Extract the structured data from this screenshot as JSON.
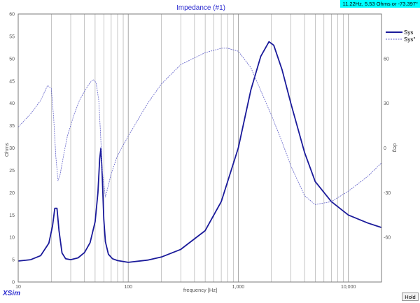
{
  "window": {
    "readout": "11.22Hz, 5.53 Ohms or -73.397°",
    "hold_label": "Hold",
    "brand": "XSim"
  },
  "colors": {
    "plot_background": "#ffffff",
    "grid": "#a0a0a0",
    "axis_text": "#555555",
    "title": "#2b2bcf",
    "series_primary": "#1a1a9a",
    "series_secondary": "#6060c8",
    "readout_bg": "#00ffff"
  },
  "chart_data": {
    "type": "line",
    "title": "Impedance (#1)",
    "xlabel": "frequency [Hz]",
    "ylabel": "Ohms",
    "y2label": "deg",
    "xscale": "log",
    "xlim": [
      10,
      20000
    ],
    "ylim": [
      0,
      60
    ],
    "y2lim": [
      -90,
      90
    ],
    "grid": true,
    "legend_position": "top-right",
    "x_ticks": [
      {
        "value": 10,
        "label": "10"
      },
      {
        "value": 100,
        "label": "100"
      },
      {
        "value": 1000,
        "label": "1,000"
      },
      {
        "value": 10000,
        "label": "10,000"
      }
    ],
    "y_ticks": [
      0,
      5,
      10,
      15,
      20,
      25,
      30,
      35,
      40,
      45,
      50,
      55,
      60
    ],
    "y2_ticks": [
      -60,
      -30,
      0,
      30,
      60
    ],
    "series": [
      {
        "name": "Sys",
        "axis": "left",
        "style": "solid",
        "x": [
          10,
          13,
          16,
          19,
          20.5,
          21.5,
          22.5,
          23.5,
          25,
          27,
          30,
          35,
          40,
          45,
          50,
          53,
          55,
          56.5,
          58,
          60,
          62,
          66,
          72,
          80,
          100,
          150,
          200,
          300,
          500,
          700,
          1000,
          1300,
          1600,
          1900,
          2100,
          2500,
          3000,
          4000,
          5000,
          7000,
          10000,
          15000,
          20000
        ],
        "values": [
          4.7,
          5.0,
          5.9,
          8.7,
          12.5,
          16.5,
          16.5,
          11.5,
          6.5,
          5.2,
          5.0,
          5.4,
          6.6,
          8.8,
          13.5,
          20.0,
          27.5,
          30.0,
          24.0,
          14.0,
          9.0,
          6.2,
          5.2,
          4.8,
          4.4,
          4.9,
          5.6,
          7.3,
          11.5,
          18.0,
          30.0,
          43.0,
          50.5,
          53.8,
          53.0,
          47.5,
          40.0,
          29.0,
          22.5,
          18.0,
          15.0,
          13.2,
          12.2
        ]
      },
      {
        "name": "Sys°",
        "axis": "right",
        "style": "dashed",
        "x": [
          10,
          13,
          16,
          18.5,
          20,
          21,
          22,
          23,
          24,
          26,
          28,
          32,
          36,
          40,
          45,
          48,
          51,
          54,
          56,
          58,
          62,
          66,
          70,
          80,
          100,
          150,
          200,
          300,
          500,
          700,
          800,
          1000,
          1300,
          1700,
          2000,
          2500,
          3000,
          4000,
          5000,
          7000,
          10000,
          15000,
          20000
        ],
        "values": [
          14,
          23,
          32,
          42,
          40,
          20,
          -6,
          -22,
          -18,
          -4,
          8,
          22,
          32,
          38,
          44,
          46,
          44,
          32,
          10,
          -15,
          -33,
          -25,
          -17,
          -5,
          8,
          30,
          43,
          56,
          64,
          67,
          67,
          65,
          54,
          34,
          22,
          4,
          -12,
          -32,
          -38,
          -36,
          -29,
          -19,
          -10
        ]
      }
    ]
  }
}
